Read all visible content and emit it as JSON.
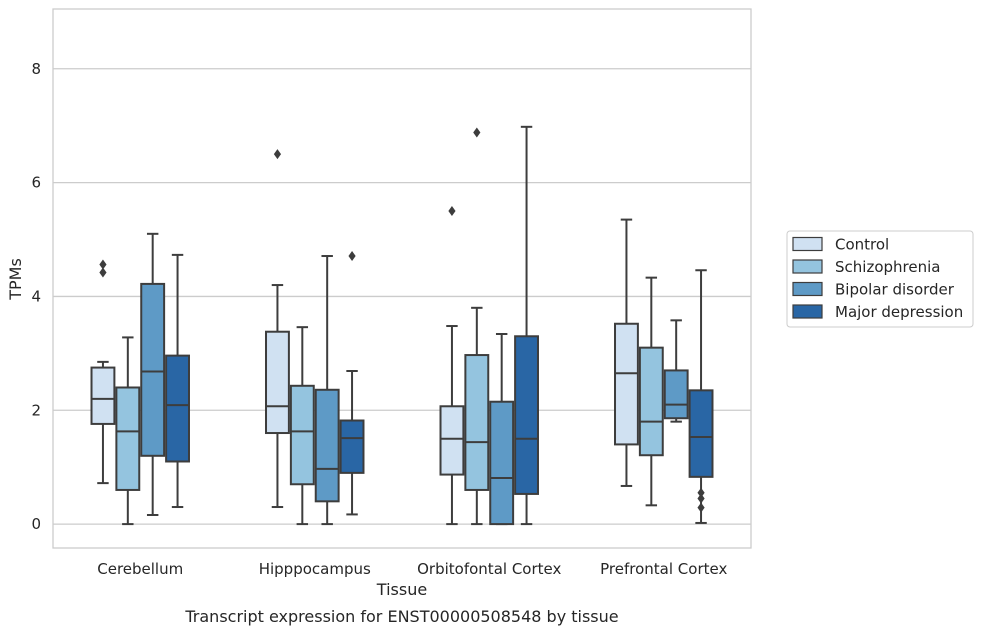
{
  "chart_data": {
    "type": "boxplot",
    "caption": "Transcript expression for ENST00000508548 by tissue",
    "xlabel": "Tissue",
    "ylabel": "TPMs",
    "ylim": [
      -0.42,
      9.05
    ],
    "yticks": [
      0,
      2,
      4,
      6,
      8
    ],
    "grid": true,
    "legend_position": "right",
    "categories": [
      "Cerebellum",
      "Hipppocampus",
      "Orbitofontal Cortex",
      "Prefrontal Cortex"
    ],
    "series": [
      {
        "name": "Control",
        "color": "#d0e1f2",
        "boxes": [
          {
            "whislo": 0.72,
            "q1": 1.76,
            "med": 2.2,
            "q3": 2.75,
            "whishi": 2.85,
            "fliers": [
              4.42,
              4.56
            ]
          },
          {
            "whislo": 0.3,
            "q1": 1.6,
            "med": 2.07,
            "q3": 3.38,
            "whishi": 4.2,
            "fliers": [
              6.5
            ]
          },
          {
            "whislo": 0.0,
            "q1": 0.87,
            "med": 1.5,
            "q3": 2.07,
            "whishi": 3.48,
            "fliers": [
              5.5
            ]
          },
          {
            "whislo": 0.67,
            "q1": 1.4,
            "med": 2.65,
            "q3": 3.52,
            "whishi": 5.35,
            "fliers": []
          }
        ]
      },
      {
        "name": "Schizophrenia",
        "color": "#94c4df",
        "boxes": [
          {
            "whislo": 0.0,
            "q1": 0.6,
            "med": 1.63,
            "q3": 2.4,
            "whishi": 3.28,
            "fliers": []
          },
          {
            "whislo": 0.0,
            "q1": 0.7,
            "med": 1.63,
            "q3": 2.43,
            "whishi": 3.46,
            "fliers": []
          },
          {
            "whislo": 0.0,
            "q1": 0.6,
            "med": 1.44,
            "q3": 2.97,
            "whishi": 3.8,
            "fliers": [
              6.88
            ]
          },
          {
            "whislo": 0.33,
            "q1": 1.21,
            "med": 1.8,
            "q3": 3.1,
            "whishi": 4.33,
            "fliers": []
          }
        ]
      },
      {
        "name": "Bipolar disorder",
        "color": "#5e9ac6",
        "boxes": [
          {
            "whislo": 0.16,
            "q1": 1.2,
            "med": 2.68,
            "q3": 4.22,
            "whishi": 5.1,
            "fliers": []
          },
          {
            "whislo": 0.0,
            "q1": 0.4,
            "med": 0.97,
            "q3": 2.36,
            "whishi": 4.71,
            "fliers": []
          },
          {
            "whislo": 0.0,
            "q1": 0.0,
            "med": 0.81,
            "q3": 2.15,
            "whishi": 3.34,
            "fliers": []
          },
          {
            "whislo": 1.8,
            "q1": 1.86,
            "med": 2.1,
            "q3": 2.7,
            "whishi": 3.58,
            "fliers": []
          }
        ]
      },
      {
        "name": "Major depression",
        "color": "#2966a5",
        "boxes": [
          {
            "whislo": 0.3,
            "q1": 1.1,
            "med": 2.09,
            "q3": 2.96,
            "whishi": 4.73,
            "fliers": []
          },
          {
            "whislo": 0.17,
            "q1": 0.9,
            "med": 1.51,
            "q3": 1.82,
            "whishi": 2.69,
            "fliers": [
              4.71
            ]
          },
          {
            "whislo": 0.0,
            "q1": 0.53,
            "med": 1.5,
            "q3": 3.3,
            "whishi": 6.98,
            "fliers": []
          },
          {
            "whislo": 0.02,
            "q1": 0.83,
            "med": 1.53,
            "q3": 2.35,
            "whishi": 4.46,
            "fliers": [
              0.29,
              0.45,
              0.55
            ]
          }
        ]
      }
    ]
  }
}
